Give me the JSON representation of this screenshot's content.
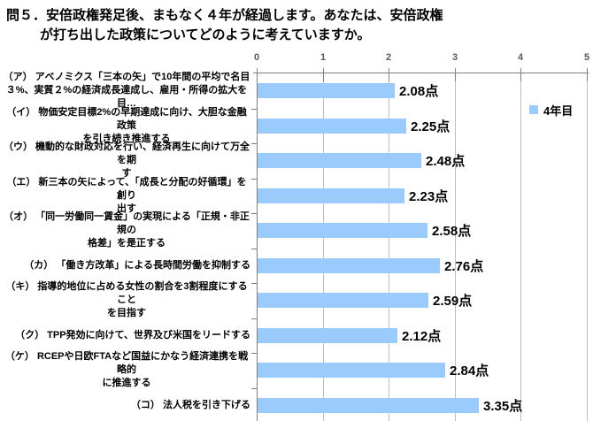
{
  "title": {
    "text": "問５．安倍政権発足後、まもなく４年が経過します。あなたは、安倍政権\nが打ち出した政策についてどのように考えていますか。"
  },
  "legend": {
    "label": "4年目"
  },
  "chart_data": {
    "type": "bar",
    "orientation": "horizontal",
    "title": "問５．安倍政権発足後、まもなく４年が経過します。あなたは、安倍政権が打ち出した政策についてどのように考えていますか。",
    "xlim": [
      0,
      5
    ],
    "x_ticks": [
      "0",
      "1",
      "2",
      "3",
      "4",
      "5"
    ],
    "grid": true,
    "legend_entries": [
      "4年目"
    ],
    "legend_position": "inside-top-right",
    "bar_color": "#9ACBFC",
    "axis_color": "#808080",
    "gridline_color": "#BFBFBF",
    "categories": [
      "（ア） アベノミクス「三本の矢」で10年間の平均で名目\n３%、実質２%の経済成長達成し、雇用・所得の拡大を目…",
      "（イ） 物価安定目標2%の早期達成に向け、大胆な金融政策\nを引き続き推進する",
      "（ウ） 機動的な財政対応を行い、経済再生に向けて万全を期\nす",
      "（エ） 新三本の矢によって、「成長と分配の好循環」を創り\n出す",
      "（オ） 「同一労働同一賃金」の実現による「正規・非正規の\n格差」を是正する",
      "（カ） 「働き方改革」による長時間労働を抑制する",
      "（キ） 指導的地位に占める女性の割合を3割程度にすること\nを目指す",
      "（ク） TPP発効に向けて、世界及び米国をリードする",
      "（ケ） RCEPや日欧FTAなど国益にかなう経済連携を戦略的\nに推進する",
      "（コ） 法人税を引き下げる"
    ],
    "values": [
      2.08,
      2.25,
      2.48,
      2.23,
      2.58,
      2.76,
      2.59,
      2.12,
      2.84,
      3.35
    ],
    "value_labels": [
      "2.08点",
      "2.25点",
      "2.48点",
      "2.23点",
      "2.58点",
      "2.76点",
      "2.59点",
      "2.12点",
      "2.84点",
      "3.35点"
    ]
  }
}
